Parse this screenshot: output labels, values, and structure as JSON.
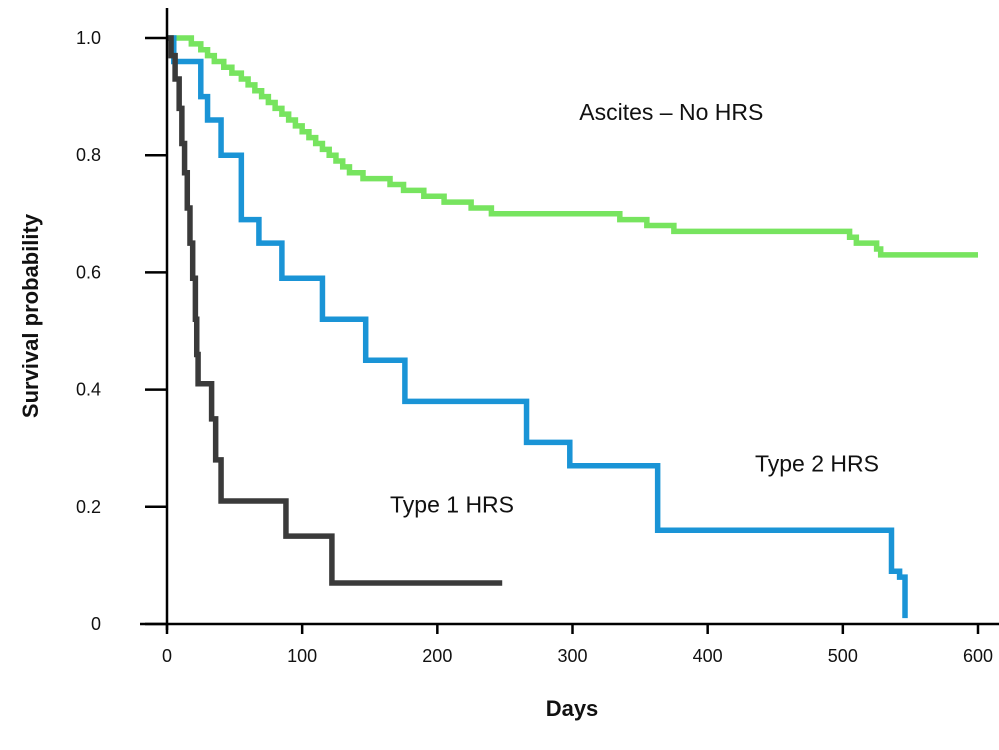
{
  "chart_data": {
    "type": "line",
    "xlabel": "Days",
    "ylabel": "Survival probability",
    "xlim": [
      0,
      600
    ],
    "ylim": [
      0,
      1.0
    ],
    "xticks": [
      0,
      100,
      200,
      300,
      400,
      500,
      600
    ],
    "yticks": [
      0,
      0.2,
      0.4,
      0.6,
      0.8,
      1.0
    ],
    "xtick_labels": [
      "0",
      "100",
      "200",
      "300",
      "400",
      "500",
      "600"
    ],
    "ytick_labels": [
      "0",
      "0.2",
      "0.4",
      "0.6",
      "0.8",
      "1.0"
    ],
    "grid": false,
    "series": [
      {
        "name": "Ascites – No HRS",
        "color": "#77e45f",
        "step": true,
        "points": [
          [
            0,
            1.0
          ],
          [
            10,
            1.0
          ],
          [
            18,
            0.99
          ],
          [
            25,
            0.98
          ],
          [
            30,
            0.97
          ],
          [
            35,
            0.96
          ],
          [
            42,
            0.95
          ],
          [
            48,
            0.94
          ],
          [
            55,
            0.93
          ],
          [
            60,
            0.92
          ],
          [
            65,
            0.91
          ],
          [
            70,
            0.9
          ],
          [
            75,
            0.89
          ],
          [
            80,
            0.88
          ],
          [
            85,
            0.87
          ],
          [
            90,
            0.86
          ],
          [
            95,
            0.85
          ],
          [
            100,
            0.84
          ],
          [
            105,
            0.83
          ],
          [
            110,
            0.82
          ],
          [
            115,
            0.81
          ],
          [
            120,
            0.8
          ],
          [
            125,
            0.79
          ],
          [
            130,
            0.78
          ],
          [
            135,
            0.77
          ],
          [
            145,
            0.76
          ],
          [
            155,
            0.76
          ],
          [
            165,
            0.75
          ],
          [
            175,
            0.74
          ],
          [
            190,
            0.73
          ],
          [
            205,
            0.72
          ],
          [
            225,
            0.71
          ],
          [
            240,
            0.7
          ],
          [
            330,
            0.7
          ],
          [
            335,
            0.69
          ],
          [
            355,
            0.68
          ],
          [
            375,
            0.67
          ],
          [
            505,
            0.66
          ],
          [
            510,
            0.65
          ],
          [
            525,
            0.64
          ],
          [
            528,
            0.63
          ],
          [
            600,
            0.63
          ]
        ]
      },
      {
        "name": "Type 2 HRS",
        "color": "#1a94d6",
        "step": true,
        "points": [
          [
            0,
            1.0
          ],
          [
            5,
            0.96
          ],
          [
            25,
            0.9
          ],
          [
            30,
            0.86
          ],
          [
            40,
            0.8
          ],
          [
            55,
            0.69
          ],
          [
            68,
            0.65
          ],
          [
            85,
            0.59
          ],
          [
            115,
            0.52
          ],
          [
            147,
            0.45
          ],
          [
            176,
            0.38
          ],
          [
            266,
            0.31
          ],
          [
            298,
            0.27
          ],
          [
            363,
            0.16
          ],
          [
            536,
            0.09
          ],
          [
            542,
            0.08
          ],
          [
            546,
            0.01
          ]
        ]
      },
      {
        "name": "Type 1 HRS",
        "color": "#3a3a3a",
        "step": true,
        "points": [
          [
            0,
            1.0
          ],
          [
            3,
            0.97
          ],
          [
            6,
            0.93
          ],
          [
            9,
            0.88
          ],
          [
            11,
            0.82
          ],
          [
            13,
            0.77
          ],
          [
            15,
            0.71
          ],
          [
            17,
            0.65
          ],
          [
            19,
            0.59
          ],
          [
            21,
            0.52
          ],
          [
            22,
            0.46
          ],
          [
            23,
            0.41
          ],
          [
            33,
            0.35
          ],
          [
            36,
            0.28
          ],
          [
            40,
            0.21
          ],
          [
            88,
            0.15
          ],
          [
            122,
            0.07
          ],
          [
            248,
            0.07
          ]
        ]
      }
    ],
    "annotations": [
      {
        "text": "Ascites – No HRS",
        "x": 305,
        "y": 0.86
      },
      {
        "text": "Type 2 HRS",
        "x": 435,
        "y": 0.26
      },
      {
        "text": "Type 1 HRS",
        "x": 165,
        "y": 0.19
      }
    ]
  }
}
